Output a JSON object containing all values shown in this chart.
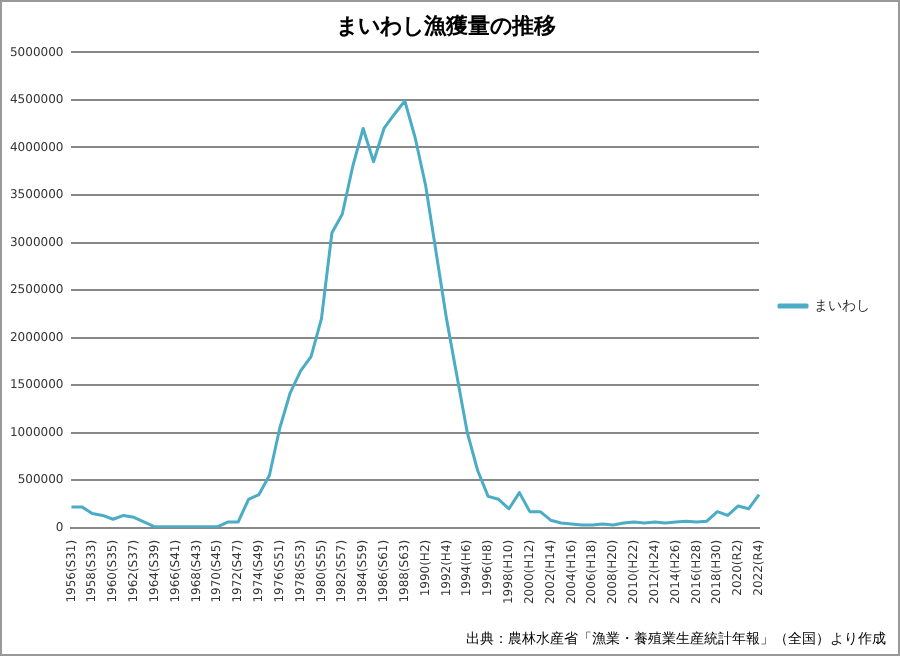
{
  "chart_data": {
    "type": "line",
    "title": "まいわし漁獲量の推移",
    "categories": [
      "1956(S31)",
      null,
      "1958(S33)",
      null,
      "1960(S35)",
      null,
      "1962(S37)",
      null,
      "1964(S39)",
      null,
      "1966(S41)",
      null,
      "1968(S43)",
      null,
      "1970(S45)",
      null,
      "1972(S47)",
      null,
      "1974(S49)",
      null,
      "1976(S51)",
      null,
      "1978(S53)",
      null,
      "1980(S55)",
      null,
      "1982(S57)",
      null,
      "1984(S59)",
      null,
      "1986(S61)",
      null,
      "1988(S63)",
      null,
      "1990(H2)",
      null,
      "1992(H4)",
      null,
      "1994(H6)",
      null,
      "1996(H8)",
      null,
      "1998(H10)",
      null,
      "2000(H12)",
      null,
      "2002(H14)",
      null,
      "2004(H16)",
      null,
      "2006(H18)",
      null,
      "2008(H20)",
      null,
      "2010(H22)",
      null,
      "2012(H24)",
      null,
      "2014(H26)",
      null,
      "2016(H28)",
      null,
      "2018(H30)",
      null,
      "2020(R2)",
      null,
      "2022(R4)"
    ],
    "series": [
      {
        "name": "まいわし",
        "color": "#4bacc6",
        "values": [
          220000,
          220000,
          150000,
          130000,
          90000,
          130000,
          110000,
          60000,
          10000,
          10000,
          10000,
          10000,
          10000,
          10000,
          10000,
          60000,
          60000,
          300000,
          350000,
          550000,
          1050000,
          1420000,
          1650000,
          1800000,
          2200000,
          3100000,
          3300000,
          3800000,
          4200000,
          3850000,
          4200000,
          4350000,
          4490000,
          4100000,
          3600000,
          2900000,
          2200000,
          1600000,
          1000000,
          600000,
          330000,
          300000,
          200000,
          370000,
          170000,
          170000,
          80000,
          50000,
          40000,
          30000,
          30000,
          40000,
          30000,
          50000,
          60000,
          50000,
          60000,
          50000,
          60000,
          70000,
          60000,
          70000,
          170000,
          130000,
          230000,
          200000,
          350000
        ]
      }
    ],
    "ylim": [
      0,
      5000000
    ],
    "yticks": [
      0,
      500000,
      1000000,
      1500000,
      2000000,
      2500000,
      3000000,
      3500000,
      4000000,
      4500000,
      5000000
    ],
    "grid": "y",
    "legend": "right",
    "marker": "none",
    "line_style": "solid",
    "annotations": [
      "出典：農林水産省「漁業・養殖業生産統計年報」（全国）より作成"
    ]
  }
}
